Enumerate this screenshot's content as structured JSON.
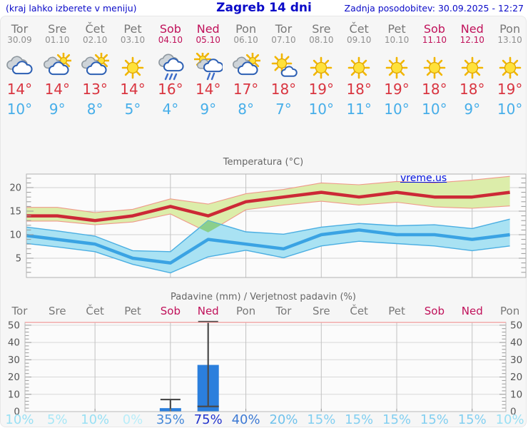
{
  "header": {
    "hint": "(kraj lahko izberete v meniju)",
    "title": "Zagreb 14 dni",
    "updated": "Zadnja posodobitev: 30.09.2025 - 12:27"
  },
  "watermark": "vreme.us",
  "colors": {
    "link": "#0a0ac8",
    "day_name": "#787878",
    "day_date": "#8f8f8f",
    "weekend": "#c0115a",
    "tmax": "#d93540",
    "tmin": "#46aee9",
    "axis_label": "#555555",
    "grid": "#c9c9c9",
    "plot_bg": "#fbfbfb"
  },
  "days": [
    {
      "name": "Tor",
      "date": "30.09",
      "weekend": false,
      "icon": "cloudy",
      "tmax": "14°",
      "tmin": "10°",
      "prob": "10%",
      "prob_color": "#99e0f4"
    },
    {
      "name": "Sre",
      "date": "01.10",
      "weekend": false,
      "icon": "partly-cloudy",
      "tmax": "14°",
      "tmin": "9°",
      "prob": "5%",
      "prob_color": "#a8e7f6"
    },
    {
      "name": "Čet",
      "date": "02.10",
      "weekend": false,
      "icon": "partly-cloudy",
      "tmax": "13°",
      "tmin": "8°",
      "prob": "10%",
      "prob_color": "#99e0f4"
    },
    {
      "name": "Pet",
      "date": "03.10",
      "weekend": false,
      "icon": "sunny",
      "tmax": "14°",
      "tmin": "5°",
      "prob": "0%",
      "prob_color": "#b9edf9"
    },
    {
      "name": "Sob",
      "date": "04.10",
      "weekend": true,
      "icon": "rain",
      "tmax": "16°",
      "tmin": "4°",
      "prob": "35%",
      "prob_color": "#4488d8"
    },
    {
      "name": "Ned",
      "date": "05.10",
      "weekend": true,
      "icon": "sun-rain",
      "tmax": "14°",
      "tmin": "9°",
      "prob": "75%",
      "prob_color": "#2233cc"
    },
    {
      "name": "Pon",
      "date": "06.10",
      "weekend": false,
      "icon": "partly-cloudy",
      "tmax": "17°",
      "tmin": "8°",
      "prob": "40%",
      "prob_color": "#3d7ad4"
    },
    {
      "name": "Tor",
      "date": "07.10",
      "weekend": false,
      "icon": "mostly-sunny",
      "tmax": "18°",
      "tmin": "7°",
      "prob": "20%",
      "prob_color": "#70c2ec"
    },
    {
      "name": "Sre",
      "date": "08.10",
      "weekend": false,
      "icon": "sunny",
      "tmax": "19°",
      "tmin": "10°",
      "prob": "15%",
      "prob_color": "#82cff1"
    },
    {
      "name": "Čet",
      "date": "09.10",
      "weekend": false,
      "icon": "sunny",
      "tmax": "18°",
      "tmin": "11°",
      "prob": "15%",
      "prob_color": "#82cff1"
    },
    {
      "name": "Pet",
      "date": "10.10",
      "weekend": false,
      "icon": "sunny",
      "tmax": "19°",
      "tmin": "10°",
      "prob": "15%",
      "prob_color": "#82cff1"
    },
    {
      "name": "Sob",
      "date": "11.10",
      "weekend": true,
      "icon": "sunny",
      "tmax": "18°",
      "tmin": "10°",
      "prob": "15%",
      "prob_color": "#82cff1"
    },
    {
      "name": "Ned",
      "date": "12.10",
      "weekend": true,
      "icon": "sunny",
      "tmax": "18°",
      "tmin": "9°",
      "prob": "15%",
      "prob_color": "#82cff1"
    },
    {
      "name": "Pon",
      "date": "13.10",
      "weekend": false,
      "icon": "sunny",
      "tmax": "19°",
      "tmin": "10°",
      "prob": "10%",
      "prob_color": "#99e0f4"
    }
  ],
  "chart_data": [
    {
      "type": "line",
      "title": "Temperatura (°C)",
      "categories": [
        "Tor",
        "Sre",
        "Čet",
        "Pet",
        "Sob",
        "Ned",
        "Pon",
        "Tor",
        "Sre",
        "Čet",
        "Pet",
        "Sob",
        "Ned",
        "Pon"
      ],
      "ylim": [
        1,
        23
      ],
      "yticks": [
        5,
        10,
        15,
        20
      ],
      "grid_day_indices": [
        2,
        4,
        6,
        8,
        10,
        12
      ],
      "series": [
        {
          "name": "tmax",
          "values": [
            14,
            14,
            13,
            14,
            16,
            14,
            17,
            18,
            19,
            18,
            19,
            18,
            18,
            19
          ],
          "color": "#cc2936",
          "width": 4.5
        },
        {
          "name": "tmax_range_hi",
          "values": [
            15.8,
            15.8,
            14.7,
            15.4,
            17.6,
            16.5,
            18.7,
            19.6,
            21.0,
            20.6,
            21.3,
            21.0,
            21.6,
            22.4
          ]
        },
        {
          "name": "tmax_range_lo",
          "values": [
            12.9,
            12.9,
            12.1,
            12.7,
            14.4,
            10.5,
            15.3,
            16.3,
            17.1,
            16.3,
            16.9,
            15.9,
            15.6,
            16.1
          ]
        },
        {
          "name": "tmin",
          "values": [
            10,
            9,
            8,
            5,
            4,
            9,
            8,
            7,
            10,
            11,
            10,
            10,
            9,
            10
          ],
          "color": "#3aa3e3",
          "width": 4.5
        },
        {
          "name": "tmin_range_hi",
          "values": [
            11.8,
            10.8,
            9.7,
            6.6,
            6.4,
            13.0,
            10.6,
            10.1,
            11.6,
            12.4,
            11.9,
            12.1,
            11.3,
            13.3
          ]
        },
        {
          "name": "tmin_range_lo",
          "values": [
            8.3,
            7.4,
            6.4,
            3.7,
            1.9,
            5.3,
            6.7,
            5.1,
            7.6,
            8.6,
            8.1,
            7.6,
            6.6,
            7.6
          ]
        }
      ],
      "band_max_fill": "#dcedaa",
      "band_max_edge": "#ef998a",
      "band_min_fill": "#a9e2f3",
      "band_min_edge": "#4aaee2",
      "overlap_fill": "#8bcf8b",
      "overlap_polygon": [
        [
          4.76,
          11.4
        ],
        [
          5.0,
          13.0
        ],
        [
          5.35,
          12.1
        ],
        [
          5.0,
          10.5
        ]
      ]
    },
    {
      "type": "bar",
      "title": "Padavine (mm) / Verjetnost padavin (%)",
      "categories": [
        "Tor",
        "Sre",
        "Čet",
        "Pet",
        "Sob",
        "Ned",
        "Pon",
        "Tor",
        "Sre",
        "Čet",
        "Pet",
        "Sob",
        "Ned",
        "Pon"
      ],
      "values": [
        0,
        0,
        0,
        0,
        2,
        27,
        0,
        0,
        0,
        0,
        0,
        0,
        0,
        0
      ],
      "whisker_hi": [
        null,
        null,
        null,
        null,
        7,
        52,
        null,
        null,
        null,
        null,
        null,
        null,
        null,
        null
      ],
      "whisker_lo": [
        null,
        null,
        null,
        null,
        null,
        3,
        null,
        null,
        null,
        null,
        null,
        null,
        null,
        null
      ],
      "probabilities": [
        "10%",
        "5%",
        "10%",
        "0%",
        "35%",
        "75%",
        "40%",
        "20%",
        "15%",
        "15%",
        "15%",
        "15%",
        "15%",
        "10%"
      ],
      "ylim": [
        0,
        52
      ],
      "yticks": [
        0,
        10,
        20,
        30,
        40,
        50
      ],
      "grid_day_indices": [
        2,
        4,
        6,
        8,
        10,
        12
      ],
      "bar_color": "#2b7fdd",
      "whisker_color": "#4a4a4a",
      "top_border_color": "#ef9a9a"
    }
  ]
}
